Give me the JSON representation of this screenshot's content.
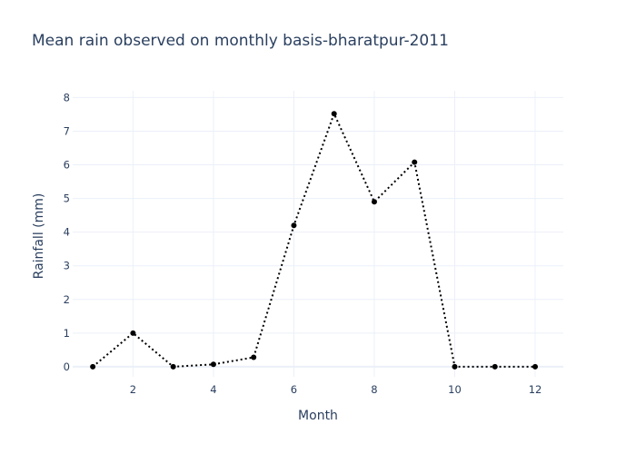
{
  "chart_data": {
    "type": "line",
    "title": "Mean rain observed on monthly basis-bharatpur-2011",
    "xlabel": "Month",
    "ylabel": "Rainfall (mm)",
    "x": [
      1,
      2,
      3,
      4,
      5,
      6,
      7,
      8,
      9,
      10,
      11,
      12
    ],
    "series": [
      {
        "name": "Rainfall",
        "values": [
          0,
          1.0,
          0,
          0.07,
          0.28,
          4.2,
          7.52,
          4.9,
          6.08,
          0,
          0,
          0
        ],
        "line_style": "dotted",
        "marker": "circle"
      }
    ],
    "xlim": [
      0.5,
      12.7
    ],
    "ylim": [
      -0.3,
      8.2
    ],
    "xticks": [
      2,
      4,
      6,
      8,
      10,
      12
    ],
    "yticks": [
      0,
      1,
      2,
      3,
      4,
      5,
      6,
      7,
      8
    ],
    "grid": true,
    "colors": {
      "line": "#000000",
      "grid": "#ebf0f8",
      "zeroline": "#ebf0f8",
      "text": "#2a3f5f",
      "background": "#ffffff"
    }
  }
}
